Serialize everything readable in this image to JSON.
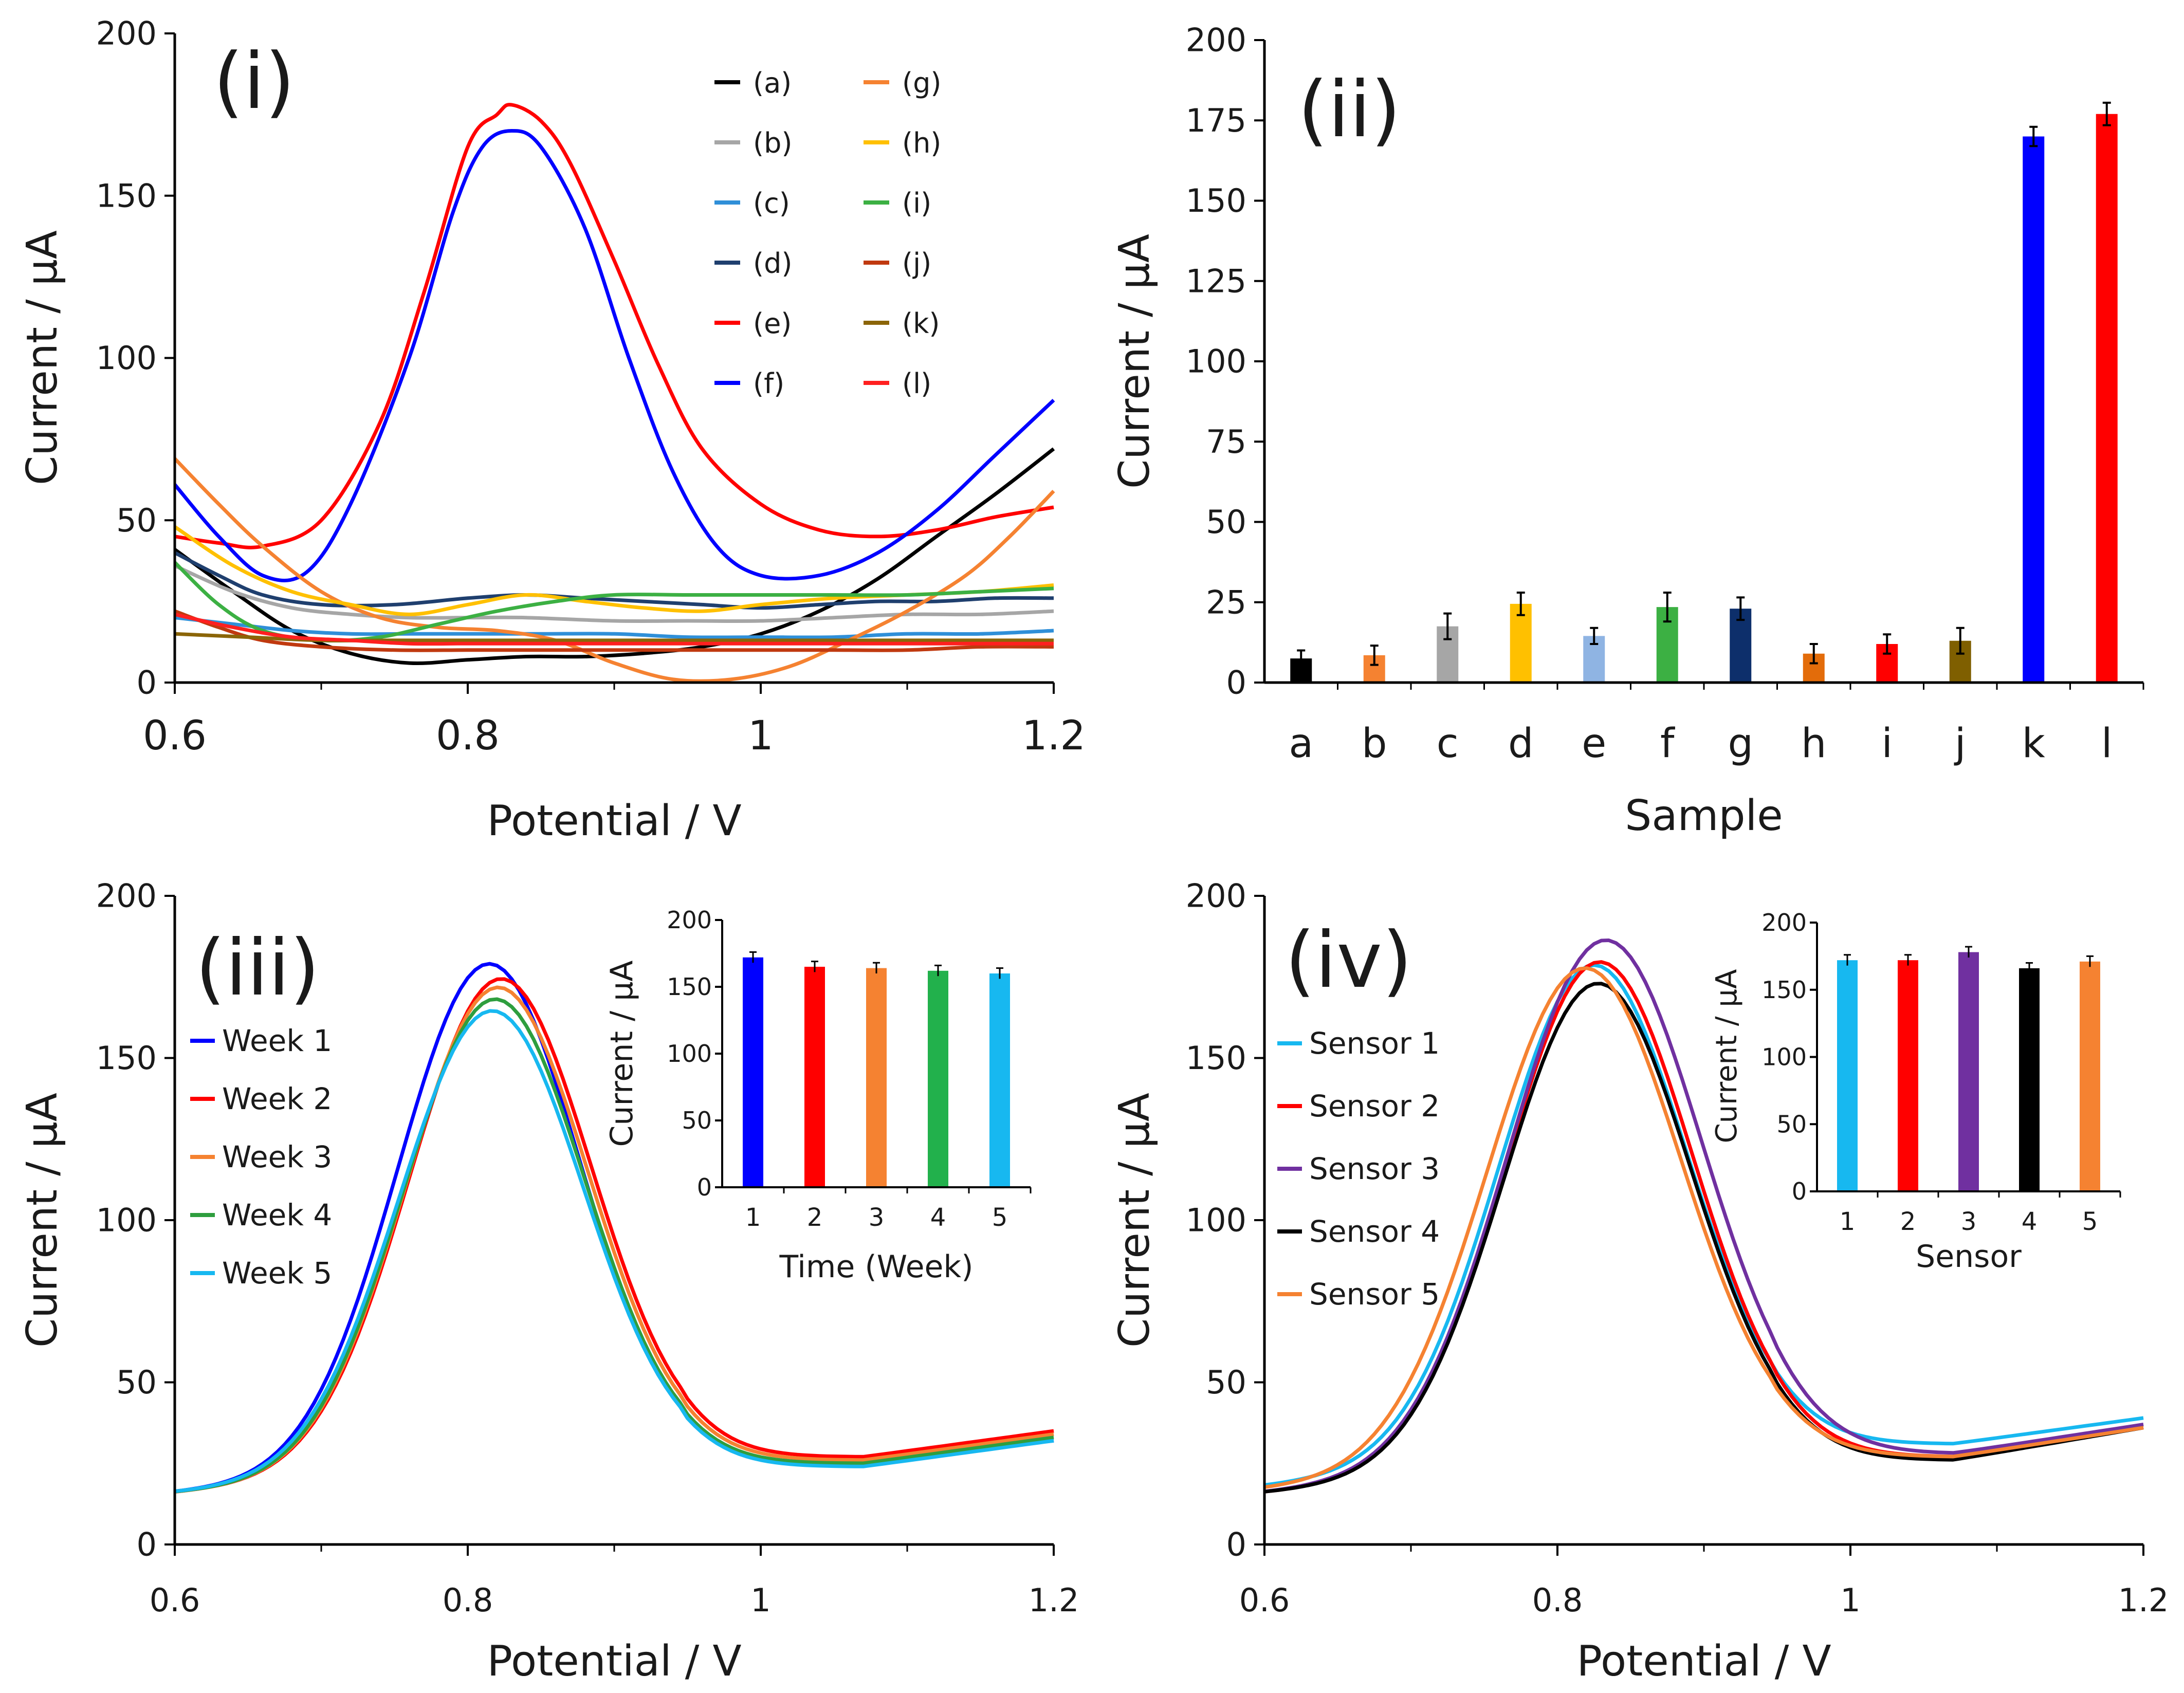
{
  "chart_data": [
    {
      "panel": "(i)",
      "type": "line",
      "xlabel": "Potential / V",
      "ylabel": "Current / μA",
      "xlim": [
        0.6,
        1.2
      ],
      "ylim": [
        0,
        200
      ],
      "xticks": [
        "0.6",
        "0.8",
        "1",
        "1.2"
      ],
      "yticks": [
        "0",
        "50",
        "100",
        "150",
        "200"
      ],
      "legend": "top-right, two columns",
      "series": [
        {
          "name": "(a)",
          "color": "#000000",
          "points": [
            [
              0.6,
              41
            ],
            [
              0.64,
              28
            ],
            [
              0.68,
              16
            ],
            [
              0.72,
              9
            ],
            [
              0.76,
              6
            ],
            [
              0.8,
              7
            ],
            [
              0.84,
              8
            ],
            [
              0.88,
              8
            ],
            [
              0.92,
              9
            ],
            [
              0.96,
              11
            ],
            [
              1.0,
              15
            ],
            [
              1.04,
              22
            ],
            [
              1.08,
              32
            ],
            [
              1.12,
              45
            ],
            [
              1.16,
              58
            ],
            [
              1.2,
              72
            ]
          ]
        },
        {
          "name": "(b)",
          "color": "#a6a6a6",
          "points": [
            [
              0.6,
              36
            ],
            [
              0.64,
              28
            ],
            [
              0.68,
              23
            ],
            [
              0.72,
              21
            ],
            [
              0.76,
              20
            ],
            [
              0.8,
              20
            ],
            [
              0.84,
              20
            ],
            [
              0.9,
              19
            ],
            [
              0.95,
              19
            ],
            [
              1.0,
              19
            ],
            [
              1.05,
              20
            ],
            [
              1.1,
              21
            ],
            [
              1.15,
              21
            ],
            [
              1.2,
              22
            ]
          ]
        },
        {
          "name": "(c)",
          "color": "#2f8fd8",
          "points": [
            [
              0.6,
              20
            ],
            [
              0.64,
              18
            ],
            [
              0.68,
              16
            ],
            [
              0.72,
              15
            ],
            [
              0.76,
              15
            ],
            [
              0.8,
              15
            ],
            [
              0.85,
              15
            ],
            [
              0.9,
              15
            ],
            [
              0.95,
              14
            ],
            [
              1.0,
              14
            ],
            [
              1.05,
              14
            ],
            [
              1.1,
              15
            ],
            [
              1.15,
              15
            ],
            [
              1.2,
              16
            ]
          ]
        },
        {
          "name": "(d)",
          "color": "#1f3f6e",
          "points": [
            [
              0.6,
              40
            ],
            [
              0.63,
              33
            ],
            [
              0.66,
              27
            ],
            [
              0.7,
              24
            ],
            [
              0.75,
              24
            ],
            [
              0.8,
              26
            ],
            [
              0.84,
              27
            ],
            [
              0.88,
              26
            ],
            [
              0.92,
              25
            ],
            [
              0.96,
              24
            ],
            [
              1.0,
              23
            ],
            [
              1.04,
              24
            ],
            [
              1.08,
              25
            ],
            [
              1.12,
              25
            ],
            [
              1.16,
              26
            ],
            [
              1.2,
              26
            ]
          ]
        },
        {
          "name": "(e)",
          "color": "#ff0000",
          "points": [
            [
              0.6,
              45
            ],
            [
              0.63,
              43
            ],
            [
              0.66,
              42
            ],
            [
              0.7,
              50
            ],
            [
              0.74,
              80
            ],
            [
              0.77,
              120
            ],
            [
              0.8,
              165
            ],
            [
              0.82,
              175
            ],
            [
              0.83,
              178
            ],
            [
              0.85,
              173
            ],
            [
              0.87,
              160
            ],
            [
              0.9,
              130
            ],
            [
              0.93,
              98
            ],
            [
              0.96,
              72
            ],
            [
              1.0,
              55
            ],
            [
              1.04,
              47
            ],
            [
              1.08,
              45
            ],
            [
              1.12,
              47
            ],
            [
              1.16,
              51
            ],
            [
              1.2,
              54
            ]
          ]
        },
        {
          "name": "(f)",
          "color": "#0000ff",
          "points": [
            [
              0.6,
              61
            ],
            [
              0.63,
              45
            ],
            [
              0.66,
              33
            ],
            [
              0.69,
              34
            ],
            [
              0.72,
              55
            ],
            [
              0.76,
              100
            ],
            [
              0.79,
              145
            ],
            [
              0.81,
              165
            ],
            [
              0.83,
              170
            ],
            [
              0.85,
              165
            ],
            [
              0.88,
              140
            ],
            [
              0.91,
              100
            ],
            [
              0.94,
              65
            ],
            [
              0.97,
              42
            ],
            [
              1.0,
              33
            ],
            [
              1.04,
              33
            ],
            [
              1.08,
              40
            ],
            [
              1.12,
              53
            ],
            [
              1.16,
              70
            ],
            [
              1.2,
              87
            ]
          ]
        },
        {
          "name": "(g)",
          "color": "#f58231",
          "points": [
            [
              0.6,
              69
            ],
            [
              0.63,
              55
            ],
            [
              0.66,
              42
            ],
            [
              0.7,
              28
            ],
            [
              0.74,
              20
            ],
            [
              0.78,
              17
            ],
            [
              0.82,
              16
            ],
            [
              0.86,
              13
            ],
            [
              0.9,
              6
            ],
            [
              0.94,
              1
            ],
            [
              0.98,
              1
            ],
            [
              1.02,
              5
            ],
            [
              1.06,
              13
            ],
            [
              1.1,
              22
            ],
            [
              1.14,
              33
            ],
            [
              1.17,
              45
            ],
            [
              1.2,
              59
            ]
          ]
        },
        {
          "name": "(h)",
          "color": "#ffc000",
          "points": [
            [
              0.6,
              48
            ],
            [
              0.64,
              36
            ],
            [
              0.68,
              28
            ],
            [
              0.72,
              24
            ],
            [
              0.76,
              21
            ],
            [
              0.8,
              24
            ],
            [
              0.84,
              27
            ],
            [
              0.88,
              25
            ],
            [
              0.92,
              23
            ],
            [
              0.96,
              22
            ],
            [
              1.0,
              24
            ],
            [
              1.05,
              26
            ],
            [
              1.1,
              27
            ],
            [
              1.15,
              28
            ],
            [
              1.2,
              30
            ]
          ]
        },
        {
          "name": "(i)",
          "color": "#3cb043",
          "points": [
            [
              0.6,
              37
            ],
            [
              0.63,
              24
            ],
            [
              0.66,
              16
            ],
            [
              0.7,
              13
            ],
            [
              0.74,
              14
            ],
            [
              0.78,
              18
            ],
            [
              0.82,
              22
            ],
            [
              0.86,
              25
            ],
            [
              0.9,
              27
            ],
            [
              0.95,
              27
            ],
            [
              1.0,
              27
            ],
            [
              1.05,
              27
            ],
            [
              1.1,
              27
            ],
            [
              1.15,
              28
            ],
            [
              1.2,
              29
            ]
          ]
        },
        {
          "name": "(j)",
          "color": "#c0390f",
          "points": [
            [
              0.6,
              22
            ],
            [
              0.63,
              17
            ],
            [
              0.66,
              13
            ],
            [
              0.7,
              11
            ],
            [
              0.75,
              10
            ],
            [
              0.8,
              10
            ],
            [
              0.85,
              10
            ],
            [
              0.9,
              10
            ],
            [
              0.95,
              10
            ],
            [
              1.0,
              10
            ],
            [
              1.05,
              10
            ],
            [
              1.1,
              10
            ],
            [
              1.15,
              11
            ],
            [
              1.2,
              11
            ]
          ]
        },
        {
          "name": "(k)",
          "color": "#8b6508",
          "points": [
            [
              0.6,
              15
            ],
            [
              0.65,
              14
            ],
            [
              0.7,
              13
            ],
            [
              0.75,
              13
            ],
            [
              0.8,
              13
            ],
            [
              0.85,
              13
            ],
            [
              0.9,
              13
            ],
            [
              0.95,
              13
            ],
            [
              1.0,
              13
            ],
            [
              1.05,
              13
            ],
            [
              1.1,
              13
            ],
            [
              1.15,
              13
            ],
            [
              1.2,
              13
            ]
          ]
        },
        {
          "name": "(l)",
          "color": "#ff2020",
          "points": [
            [
              0.6,
              21
            ],
            [
              0.64,
              17
            ],
            [
              0.68,
              14
            ],
            [
              0.72,
              13
            ],
            [
              0.76,
              12
            ],
            [
              0.8,
              12
            ],
            [
              0.85,
              12
            ],
            [
              0.9,
              12
            ],
            [
              0.95,
              12
            ],
            [
              1.0,
              12
            ],
            [
              1.05,
              12
            ],
            [
              1.1,
              12
            ],
            [
              1.15,
              12
            ],
            [
              1.2,
              12
            ]
          ]
        }
      ]
    },
    {
      "panel": "(ii)",
      "type": "bar",
      "xlabel": "Sample",
      "ylabel": "Current / μA",
      "ylim": [
        0,
        200
      ],
      "yticks": [
        "0",
        "25",
        "50",
        "75",
        "100",
        "125",
        "150",
        "175",
        "200"
      ],
      "categories": [
        "a",
        "b",
        "c",
        "d",
        "e",
        "f",
        "g",
        "h",
        "i",
        "j",
        "k",
        "l"
      ],
      "values": [
        7.5,
        8.5,
        17.5,
        24.5,
        14.5,
        23.5,
        23,
        9,
        12,
        13,
        170,
        177
      ],
      "errors": [
        2.5,
        3,
        4,
        3.5,
        2.5,
        4.5,
        3.5,
        3,
        3,
        4,
        3,
        3.5
      ],
      "colors": [
        "#000000",
        "#f58231",
        "#a6a6a6",
        "#ffc000",
        "#8fb4e3",
        "#3cb043",
        "#0d2f6b",
        "#e36c0a",
        "#ff0000",
        "#7f5f00",
        "#0000ff",
        "#ff0000"
      ]
    },
    {
      "panel": "(iii)",
      "type": "line",
      "xlabel": "Potential / V",
      "ylabel": "Current / μA",
      "xlim": [
        0.6,
        1.2
      ],
      "ylim": [
        0,
        200
      ],
      "xticks": [
        "0.6",
        "0.8",
        "1",
        "1.2"
      ],
      "yticks": [
        "0",
        "50",
        "100",
        "150",
        "200"
      ],
      "legend": "left",
      "series": [
        {
          "name": "Week 1",
          "color": "#0000ff",
          "peak": 173,
          "mu": 0.814,
          "sigma": 0.062,
          "left": 16,
          "right": 32,
          "dip": 25
        },
        {
          "name": "Week 2",
          "color": "#ff0000",
          "peak": 167,
          "mu": 0.822,
          "sigma": 0.062,
          "left": 16,
          "right": 35,
          "dip": 27
        },
        {
          "name": "Week 3",
          "color": "#f58231",
          "peak": 165,
          "mu": 0.82,
          "sigma": 0.062,
          "left": 16,
          "right": 34,
          "dip": 26
        },
        {
          "name": "Week 4",
          "color": "#2e9e3e",
          "peak": 162,
          "mu": 0.818,
          "sigma": 0.062,
          "left": 16,
          "right": 33,
          "dip": 25
        },
        {
          "name": "Week 5",
          "color": "#17b8f0",
          "peak": 159,
          "mu": 0.816,
          "sigma": 0.063,
          "left": 16,
          "right": 32,
          "dip": 24
        }
      ],
      "inset": {
        "type": "bar",
        "xlabel": "Time (Week)",
        "ylabel": "Current / μA",
        "ylim": [
          0,
          200
        ],
        "yticks": [
          "0",
          "50",
          "100",
          "150",
          "200"
        ],
        "categories": [
          "1",
          "2",
          "3",
          "4",
          "5"
        ],
        "values": [
          172,
          165,
          164,
          162,
          160
        ],
        "errors": [
          4,
          4,
          4,
          4,
          4
        ],
        "colors": [
          "#0000ff",
          "#ff0000",
          "#f58231",
          "#22b14c",
          "#17b8f0"
        ]
      }
    },
    {
      "panel": "(iv)",
      "type": "line",
      "xlabel": "Potential / V",
      "ylabel": "Current / μA",
      "xlim": [
        0.6,
        1.2
      ],
      "ylim": [
        0,
        200
      ],
      "xticks": [
        "0.6",
        "0.8",
        "1",
        "1.2"
      ],
      "yticks": [
        "0",
        "50",
        "100",
        "150",
        "200"
      ],
      "legend": "left",
      "series": [
        {
          "name": "Sensor 1",
          "color": "#17b8f0",
          "peak": 170,
          "mu": 0.824,
          "sigma": 0.064,
          "left": 18,
          "right": 39,
          "dip": 31
        },
        {
          "name": "Sensor 2",
          "color": "#ff0000",
          "peak": 172,
          "mu": 0.828,
          "sigma": 0.064,
          "left": 16,
          "right": 36,
          "dip": 27
        },
        {
          "name": "Sensor 3",
          "color": "#7030a0",
          "peak": 178,
          "mu": 0.832,
          "sigma": 0.066,
          "left": 16,
          "right": 37,
          "dip": 28
        },
        {
          "name": "Sensor 4",
          "color": "#000000",
          "peak": 166,
          "mu": 0.827,
          "sigma": 0.064,
          "left": 16,
          "right": 36,
          "dip": 26
        },
        {
          "name": "Sensor 5",
          "color": "#f58231",
          "peak": 171,
          "mu": 0.818,
          "sigma": 0.066,
          "left": 17,
          "right": 36,
          "dip": 27
        }
      ],
      "inset": {
        "type": "bar",
        "xlabel": "Sensor",
        "ylabel": "Current / μA",
        "ylim": [
          0,
          200
        ],
        "yticks": [
          "0",
          "50",
          "100",
          "150",
          "200"
        ],
        "categories": [
          "1",
          "2",
          "3",
          "4",
          "5"
        ],
        "values": [
          172,
          172,
          178,
          166,
          171
        ],
        "errors": [
          4,
          4,
          4,
          4,
          4
        ],
        "colors": [
          "#17b8f0",
          "#ff0000",
          "#7030a0",
          "#000000",
          "#f58231"
        ]
      }
    }
  ]
}
